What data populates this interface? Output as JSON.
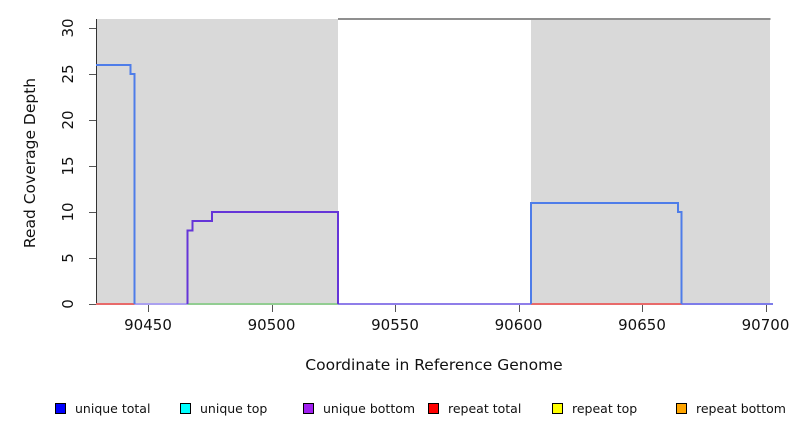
{
  "chart_data": {
    "type": "line",
    "title": "",
    "xlabel": "Coordinate in Reference Genome",
    "ylabel": "Read Coverage Depth",
    "xlim": [
      90429,
      90703
    ],
    "ylim": [
      0,
      31
    ],
    "x_ticks": [
      90450,
      90500,
      90550,
      90600,
      90650,
      90700
    ],
    "y_ticks": [
      0,
      5,
      10,
      15,
      20,
      25,
      30
    ],
    "grid": false,
    "legend_position": "bottom",
    "shaded_regions": [
      {
        "name": "unique-region-left",
        "x1": 90429,
        "x2": 90527,
        "color": "#d9d9d9"
      },
      {
        "name": "unique-region-right",
        "x1": 90605,
        "x2": 90702,
        "color": "#d9d9d9"
      }
    ],
    "series": [
      {
        "name": "unique-total-left-block",
        "color": "#4e7de9",
        "points": [
          [
            90429,
            26
          ],
          [
            90443,
            26
          ],
          [
            90443,
            25
          ],
          [
            90444.5,
            25
          ],
          [
            90444.5,
            0
          ]
        ]
      },
      {
        "name": "unique-bottom-steps",
        "color": "#6535d8",
        "points": [
          [
            90466,
            0
          ],
          [
            90466,
            8
          ],
          [
            90468,
            8
          ],
          [
            90468,
            9
          ],
          [
            90476,
            9
          ],
          [
            90476,
            10
          ],
          [
            90527,
            10
          ],
          [
            90527,
            0
          ]
        ]
      },
      {
        "name": "unique-total-right-block",
        "color": "#4e7de9",
        "points": [
          [
            90605,
            0
          ],
          [
            90605,
            11
          ],
          [
            90664.5,
            11
          ],
          [
            90664.5,
            10
          ],
          [
            90666,
            10
          ],
          [
            90666,
            0
          ]
        ]
      },
      {
        "name": "offscale-top-line",
        "color": "#8f8f8f",
        "points": [
          [
            90527,
            31
          ],
          [
            90702,
            31
          ]
        ]
      }
    ],
    "zero_baseline_segments": [
      {
        "name": "repeat-total-zero-left",
        "color": "#e86a6a",
        "x1": 90429,
        "x2": 90444.5
      },
      {
        "name": "zero-segment-lavender",
        "color": "#aba1ef",
        "x1": 90444.5,
        "x2": 90466
      },
      {
        "name": "zero-segment-green",
        "color": "#92cd92",
        "x1": 90466,
        "x2": 90527
      },
      {
        "name": "zero-segment-violet-mid",
        "color": "#8f7ee9",
        "x1": 90527,
        "x2": 90605
      },
      {
        "name": "repeat-total-zero-right",
        "color": "#e86a6a",
        "x1": 90605,
        "x2": 90666
      },
      {
        "name": "zero-segment-violet-right",
        "color": "#7d7ce9",
        "x1": 90666,
        "x2": 90703
      }
    ],
    "legend": [
      {
        "label": "unique total",
        "color": "#0000ff"
      },
      {
        "label": "unique top",
        "color": "#00ffff"
      },
      {
        "label": "unique bottom",
        "color": "#a020f0"
      },
      {
        "label": "repeat total",
        "color": "#ff0000"
      },
      {
        "label": "repeat top",
        "color": "#ffff00"
      },
      {
        "label": "repeat bottom",
        "color": "#ffa500"
      }
    ]
  }
}
